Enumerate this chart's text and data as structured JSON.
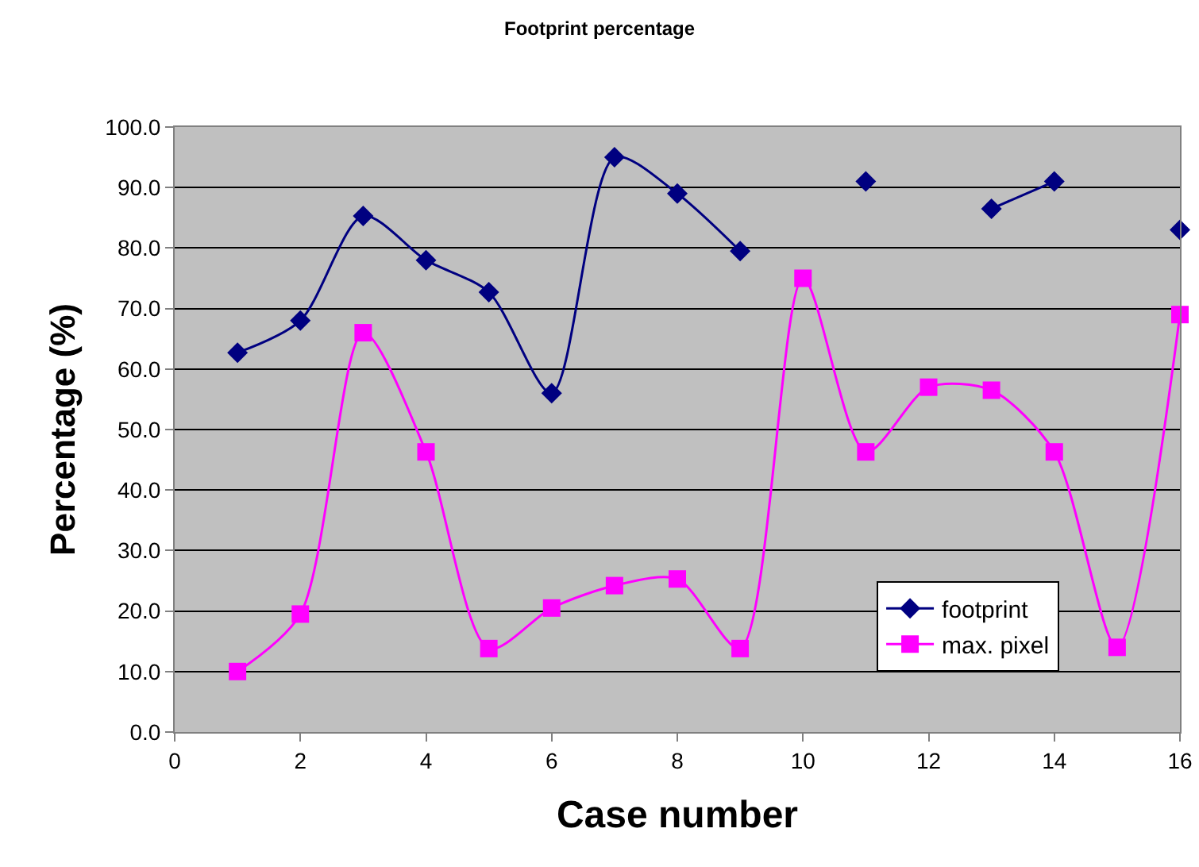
{
  "chart_data": {
    "type": "line",
    "title": "Footprint percentage",
    "xlabel": "Case number",
    "ylabel": "Percentage (%)",
    "x": [
      1,
      2,
      3,
      4,
      5,
      6,
      7,
      8,
      9,
      10,
      11,
      12,
      13,
      14,
      15,
      16
    ],
    "series": [
      {
        "name": "footprint",
        "color": "#000080",
        "marker": "diamond",
        "values": [
          62.7,
          68.0,
          85.3,
          78.0,
          72.7,
          56.0,
          95.0,
          89.0,
          79.5,
          null,
          91.0,
          null,
          86.5,
          91.0,
          null,
          83.0
        ]
      },
      {
        "name": "max. pixel",
        "color": "#ff00ff",
        "marker": "square",
        "values": [
          10.0,
          19.5,
          66.0,
          46.3,
          13.8,
          20.5,
          24.2,
          25.3,
          13.8,
          75.0,
          46.3,
          57.0,
          56.5,
          46.3,
          14.0,
          69.0
        ]
      }
    ],
    "xlim": [
      0,
      16
    ],
    "xticks": [
      0,
      2,
      4,
      6,
      8,
      10,
      12,
      14,
      16
    ],
    "ylim": [
      0,
      100
    ],
    "yticks": [
      {
        "value": 0,
        "label": "0.0"
      },
      {
        "value": 10,
        "label": "10.0"
      },
      {
        "value": 20,
        "label": "20.0"
      },
      {
        "value": 30,
        "label": "30.0"
      },
      {
        "value": 40,
        "label": "40.0"
      },
      {
        "value": 50,
        "label": "50.0"
      },
      {
        "value": 60,
        "label": "60.0"
      },
      {
        "value": 70,
        "label": "70.0"
      },
      {
        "value": 80,
        "label": "80.0"
      },
      {
        "value": 90,
        "label": "90.0"
      },
      {
        "value": 100,
        "label": "100.0"
      }
    ],
    "grid": "y",
    "legend": "bottom right",
    "line_style": "solid"
  }
}
